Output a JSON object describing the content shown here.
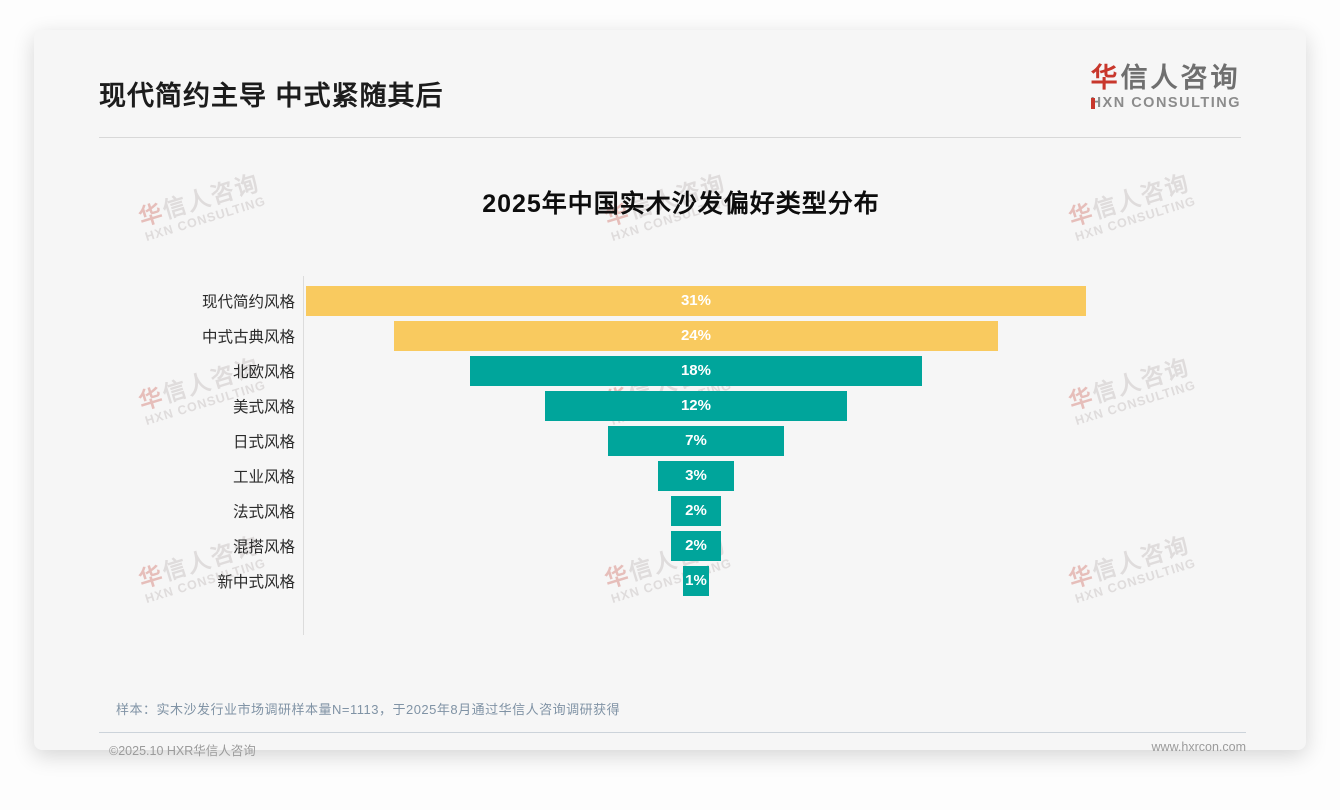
{
  "header": {
    "title": "现代简约主导 中式紧随其后"
  },
  "logo": {
    "cn_first": "华",
    "cn_rest": "信人咨询",
    "en": "HXN CONSULTING"
  },
  "watermark": {
    "cn_first": "华",
    "cn_rest": "信人咨询",
    "en": "HXN CONSULTING"
  },
  "chart_data": {
    "type": "bar",
    "orientation": "horizontal",
    "alignment": "centered-funnel",
    "title": "2025年中国实木沙发偏好类型分布",
    "categories": [
      "现代简约风格",
      "中式古典风格",
      "北欧风格",
      "美式风格",
      "日式风格",
      "工业风格",
      "法式风格",
      "混搭风格",
      "新中式风格"
    ],
    "values": [
      31,
      24,
      18,
      12,
      7,
      3,
      2,
      2,
      1
    ],
    "value_labels": [
      "31%",
      "24%",
      "18%",
      "12%",
      "7%",
      "3%",
      "2%",
      "2%",
      "1%"
    ],
    "bar_colors": [
      "#F9CA5F",
      "#F9CA5F",
      "#00A59B",
      "#00A59B",
      "#00A59B",
      "#00A59B",
      "#00A59B",
      "#00A59B",
      "#00A59B"
    ],
    "value_label_position": "inside-center",
    "value_label_color": "#ffffff",
    "xlim": [
      0,
      31
    ],
    "grid": false,
    "legend": false
  },
  "footnote": "样本：实木沙发行业市场调研样本量N=1113，于2025年8月通过华信人咨询调研获得",
  "footer": {
    "left": "©2025.10 HXR华信人咨询",
    "right": "www.hxrcon.com"
  }
}
